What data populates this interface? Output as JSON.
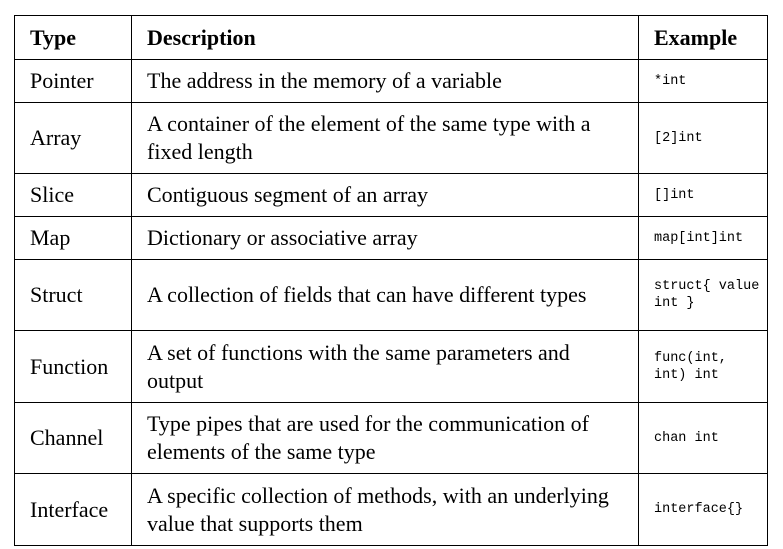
{
  "table": {
    "headers": [
      "Type",
      "Description",
      "Example"
    ],
    "rows": [
      {
        "type": "Pointer",
        "description": "The address in the memory of a variable",
        "example": "*int"
      },
      {
        "type": "Array",
        "description": "A container of the element of the same type with a fixed length",
        "example": "[2]int"
      },
      {
        "type": "Slice",
        "description": "Contiguous segment of an array",
        "example": "[]int"
      },
      {
        "type": "Map",
        "description": "Dictionary or associative array",
        "example": "map[int]int"
      },
      {
        "type": "Struct",
        "description": "A collection of fields that can have different types",
        "example": "struct{ value int }"
      },
      {
        "type": "Function",
        "description": "A set of functions with the same parameters and output",
        "example": "func(int, int) int"
      },
      {
        "type": "Channel",
        "description": "Type pipes that are used for the communication of elements of the same type",
        "example": "chan int"
      },
      {
        "type": "Interface",
        "description": "A specific collection of methods, with an underlying value that supports them",
        "example": "interface{}"
      }
    ]
  }
}
